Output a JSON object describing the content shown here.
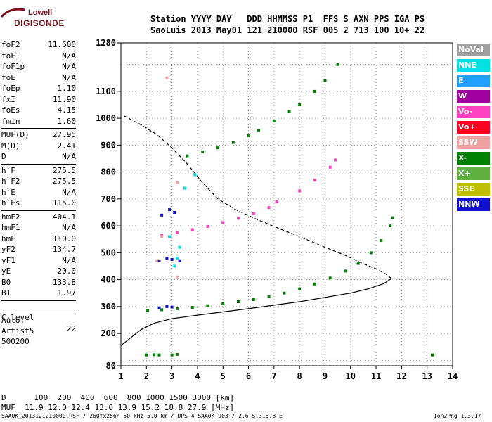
{
  "logo": {
    "line1": "Lowell",
    "line2": "DIGISONDE"
  },
  "header": {
    "labels": "Station YYYY DAY   DDD HHMMSS P1  FFS S AXN PPS IGA PS",
    "values": "SaoLuis 2013 May01 121 210000 RSF 005 2 713 100 10+ 22"
  },
  "params": {
    "group1": [
      {
        "label": "foF2",
        "value": "11.600"
      },
      {
        "label": "foF1",
        "value": "N/A"
      },
      {
        "label": "foF1p",
        "value": "N/A"
      },
      {
        "label": "foE",
        "value": "N/A"
      },
      {
        "label": "foEp",
        "value": "1.10"
      },
      {
        "label": "fxI",
        "value": "11.90"
      },
      {
        "label": "foEs",
        "value": "4.15"
      },
      {
        "label": "fmin",
        "value": "1.60"
      }
    ],
    "group2": [
      {
        "label": "MUF(D)",
        "value": "27.95"
      },
      {
        "label": "M(D)",
        "value": "2.41"
      },
      {
        "label": "D",
        "value": "N/A"
      }
    ],
    "group3": [
      {
        "label": "h`F",
        "value": "275.5"
      },
      {
        "label": "h`F2",
        "value": "275.5"
      },
      {
        "label": "h`E",
        "value": "N/A"
      },
      {
        "label": "h`Es",
        "value": "115.0"
      }
    ],
    "group4": [
      {
        "label": "hmF2",
        "value": "404.1"
      },
      {
        "label": "hmF1",
        "value": "N/A"
      },
      {
        "label": "hmE",
        "value": "110.0"
      },
      {
        "label": "yF2",
        "value": "134.7"
      },
      {
        "label": "yF1",
        "value": "N/A"
      },
      {
        "label": "yE",
        "value": "20.0"
      },
      {
        "label": "B0",
        "value": "133.8"
      },
      {
        "label": "B1",
        "value": "1.97"
      }
    ],
    "clevel": {
      "label": "C-level",
      "value": "22"
    },
    "auto": [
      "Auto:",
      "Artist5",
      "500200"
    ]
  },
  "legend": [
    {
      "label": "NoVal",
      "bg": "#a0a0a0",
      "fg": "#ffffff"
    },
    {
      "label": "NNE",
      "bg": "#00e0e0",
      "fg": "#ffffff"
    },
    {
      "label": "E",
      "bg": "#20a0ff",
      "fg": "#ffffff"
    },
    {
      "label": "W",
      "bg": "#a000a0",
      "fg": "#ffffff"
    },
    {
      "label": "Vo-",
      "bg": "#ff40c0",
      "fg": "#ffffff"
    },
    {
      "label": "Vo+",
      "bg": "#ff0020",
      "fg": "#ffffff"
    },
    {
      "label": "SSW",
      "bg": "#f0a0a0",
      "fg": "#ffffff"
    },
    {
      "label": "X-",
      "bg": "#008000",
      "fg": "#ffffff"
    },
    {
      "label": "X+",
      "bg": "#60b040",
      "fg": "#ffffff"
    },
    {
      "label": "SSE",
      "bg": "#c0c000",
      "fg": "#ffffff"
    },
    {
      "label": "NNW",
      "bg": "#1010d0",
      "fg": "#ffffff"
    }
  ],
  "footer": {
    "d_row": "D      100  200  400  600  800 1000 1500 3000 [km]",
    "muf_row": "MUF  11.9 12.0 12.4 13.0 13.9 15.2 18.8 27.9 [MHz]",
    "file_line": "SAA0K_2013121210000.RSF / 260fx256h 50 kHz 5.0 km / DPS-4 SAA0K 903 / 2.6 S 315.8 E",
    "version": "Ion2Png 1.3.17"
  },
  "chart_data": {
    "type": "scatter",
    "xlim": [
      1,
      14
    ],
    "ylim": [
      80,
      1280
    ],
    "x_ticks": [
      1,
      2,
      3,
      4,
      5,
      6,
      7,
      8,
      9,
      10,
      11,
      12,
      13,
      14
    ],
    "y_ticks": [
      80,
      200,
      300,
      400,
      500,
      600,
      700,
      800,
      900,
      1000,
      1100,
      1280
    ],
    "grid": "dotted",
    "axis_labels_color": "#000000",
    "series": [
      {
        "color": "#008000",
        "values": [
          [
            2.05,
            285
          ],
          [
            2.6,
            288
          ],
          [
            3.2,
            292
          ],
          [
            3.8,
            297
          ],
          [
            4.4,
            303
          ],
          [
            5.0,
            310
          ],
          [
            5.6,
            318
          ],
          [
            6.2,
            326
          ],
          [
            6.8,
            336
          ],
          [
            7.4,
            350
          ],
          [
            8.0,
            366
          ],
          [
            8.6,
            384
          ],
          [
            9.2,
            406
          ],
          [
            9.8,
            432
          ],
          [
            10.3,
            460
          ],
          [
            10.8,
            500
          ],
          [
            11.2,
            545
          ],
          [
            11.55,
            600
          ],
          [
            11.65,
            630
          ]
        ]
      },
      {
        "color": "#ff40c0",
        "values": [
          [
            2.6,
            565
          ],
          [
            3.2,
            575
          ],
          [
            3.8,
            586
          ],
          [
            4.4,
            598
          ],
          [
            5.0,
            612
          ],
          [
            5.6,
            628
          ],
          [
            6.2,
            646
          ],
          [
            6.8,
            668
          ],
          [
            7.1,
            690
          ],
          [
            8.0,
            730
          ],
          [
            8.6,
            770
          ],
          [
            9.2,
            818
          ],
          [
            9.4,
            845
          ]
        ]
      },
      {
        "color": "#008000",
        "values": [
          [
            3.6,
            860
          ],
          [
            4.2,
            875
          ],
          [
            4.8,
            890
          ],
          [
            5.4,
            910
          ],
          [
            6.0,
            935
          ],
          [
            6.4,
            955
          ],
          [
            7.0,
            990
          ],
          [
            7.6,
            1025
          ],
          [
            8.0,
            1050
          ],
          [
            8.6,
            1100
          ],
          [
            9.0,
            1140
          ],
          [
            9.5,
            1200
          ]
        ]
      },
      {
        "color": "#1010d0",
        "values": [
          [
            2.5,
            470
          ],
          [
            2.8,
            480
          ],
          [
            3.0,
            475
          ],
          [
            3.3,
            470
          ],
          [
            2.6,
            640
          ],
          [
            2.9,
            660
          ],
          [
            3.1,
            650
          ],
          [
            2.5,
            295
          ],
          [
            2.8,
            300
          ],
          [
            3.0,
            298
          ]
        ]
      },
      {
        "color": "#00e0e0",
        "values": [
          [
            3.1,
            450
          ],
          [
            3.3,
            520
          ],
          [
            3.5,
            740
          ],
          [
            3.9,
            790
          ],
          [
            2.9,
            560
          ],
          [
            3.2,
            480
          ]
        ]
      },
      {
        "color": "#f0a0a0",
        "values": [
          [
            2.4,
            470
          ],
          [
            3.2,
            410
          ],
          [
            2.6,
            560
          ],
          [
            3.2,
            760
          ],
          [
            2.8,
            1150
          ]
        ]
      },
      {
        "color": "#008000",
        "values": [
          [
            2.0,
            120
          ],
          [
            2.5,
            120
          ],
          [
            3.0,
            120
          ],
          [
            3.2,
            122
          ],
          [
            2.3,
            121
          ],
          [
            13.2,
            120
          ]
        ]
      }
    ],
    "profile_solid": [
      [
        1.0,
        155
      ],
      [
        1.4,
        185
      ],
      [
        1.8,
        215
      ],
      [
        2.3,
        238
      ],
      [
        3.0,
        255
      ],
      [
        4.0,
        268
      ],
      [
        5.0,
        280
      ],
      [
        6.0,
        292
      ],
      [
        7.0,
        305
      ],
      [
        8.0,
        318
      ],
      [
        9.0,
        334
      ],
      [
        10.0,
        350
      ],
      [
        10.7,
        366
      ],
      [
        11.3,
        385
      ],
      [
        11.6,
        404
      ]
    ],
    "profile_dashed": [
      [
        11.6,
        404
      ],
      [
        11.4,
        420
      ],
      [
        11.0,
        440
      ],
      [
        10.4,
        463
      ],
      [
        9.8,
        490
      ],
      [
        9.0,
        520
      ],
      [
        8.0,
        560
      ],
      [
        7.2,
        590
      ],
      [
        6.3,
        625
      ],
      [
        5.5,
        660
      ],
      [
        4.8,
        700
      ],
      [
        4.2,
        760
      ],
      [
        3.6,
        830
      ],
      [
        3.0,
        890
      ],
      [
        2.4,
        940
      ],
      [
        1.8,
        975
      ],
      [
        1.1,
        1010
      ]
    ]
  }
}
